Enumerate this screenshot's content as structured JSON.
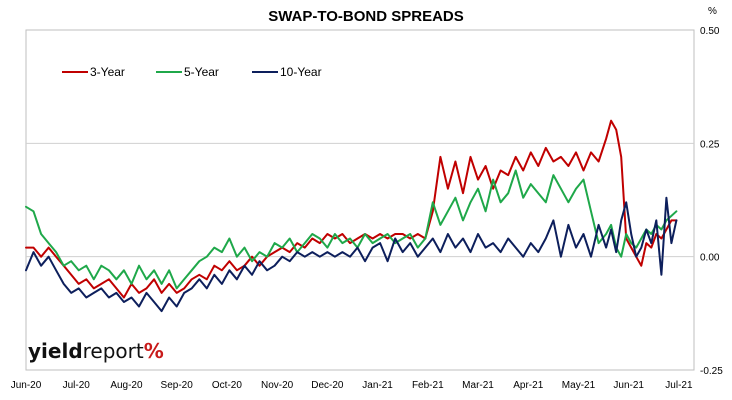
{
  "chart_data": {
    "type": "line",
    "title": "SWAP-TO-BOND SPREADS",
    "ylabel": "%",
    "ylim": [
      -0.25,
      0.5
    ],
    "yticks": [
      "0.50",
      "0.25",
      "0.00",
      "-0.25"
    ],
    "ytick_values": [
      0.5,
      0.25,
      0.0,
      -0.25
    ],
    "xlim": [
      0,
      13.3
    ],
    "xticks": [
      "Jun-20",
      "Jul-20",
      "Aug-20",
      "Sep-20",
      "Oct-20",
      "Nov-20",
      "Dec-20",
      "Jan-21",
      "Feb-21",
      "Mar-21",
      "Apr-21",
      "May-21",
      "Jun-21",
      "Jul-21"
    ],
    "grid": "horizontal",
    "legend_position": "top-left",
    "series": [
      {
        "name": "3-Year",
        "color": "#c00000",
        "x": [
          0.0,
          0.15,
          0.3,
          0.45,
          0.6,
          0.75,
          0.9,
          1.05,
          1.2,
          1.35,
          1.5,
          1.65,
          1.8,
          1.95,
          2.1,
          2.25,
          2.4,
          2.55,
          2.7,
          2.85,
          3.0,
          3.15,
          3.3,
          3.45,
          3.6,
          3.75,
          3.9,
          4.05,
          4.2,
          4.35,
          4.5,
          4.65,
          4.8,
          4.95,
          5.1,
          5.25,
          5.4,
          5.55,
          5.7,
          5.85,
          6.0,
          6.15,
          6.3,
          6.45,
          6.6,
          6.75,
          6.9,
          7.05,
          7.2,
          7.35,
          7.5,
          7.65,
          7.8,
          7.95,
          8.1,
          8.25,
          8.4,
          8.55,
          8.7,
          8.85,
          9.0,
          9.15,
          9.3,
          9.45,
          9.6,
          9.75,
          9.9,
          10.05,
          10.2,
          10.35,
          10.5,
          10.65,
          10.8,
          10.95,
          11.1,
          11.25,
          11.4,
          11.55,
          11.65,
          11.75,
          11.85,
          11.95,
          12.05,
          12.15,
          12.25,
          12.35,
          12.45,
          12.55,
          12.65,
          12.75,
          12.85,
          12.95
        ],
        "y": [
          0.02,
          0.02,
          0.0,
          0.02,
          0.0,
          -0.02,
          -0.04,
          -0.06,
          -0.05,
          -0.07,
          -0.06,
          -0.05,
          -0.07,
          -0.09,
          -0.06,
          -0.08,
          -0.07,
          -0.05,
          -0.08,
          -0.06,
          -0.08,
          -0.07,
          -0.05,
          -0.04,
          -0.05,
          -0.02,
          -0.03,
          -0.01,
          -0.03,
          -0.02,
          0.0,
          -0.02,
          0.0,
          0.01,
          0.02,
          0.01,
          0.03,
          0.02,
          0.04,
          0.03,
          0.05,
          0.04,
          0.05,
          0.03,
          0.04,
          0.05,
          0.04,
          0.05,
          0.04,
          0.05,
          0.05,
          0.04,
          0.05,
          0.04,
          0.1,
          0.22,
          0.15,
          0.21,
          0.14,
          0.22,
          0.17,
          0.2,
          0.15,
          0.19,
          0.18,
          0.22,
          0.19,
          0.23,
          0.2,
          0.24,
          0.21,
          0.22,
          0.2,
          0.23,
          0.19,
          0.23,
          0.21,
          0.26,
          0.3,
          0.28,
          0.22,
          0.04,
          0.02,
          0.0,
          -0.02,
          0.03,
          0.02,
          0.05,
          0.04,
          0.06,
          0.08,
          0.08
        ]
      },
      {
        "name": "5-Year",
        "color": "#1fa84a",
        "x": [
          0.0,
          0.15,
          0.3,
          0.45,
          0.6,
          0.75,
          0.9,
          1.05,
          1.2,
          1.35,
          1.5,
          1.65,
          1.8,
          1.95,
          2.1,
          2.25,
          2.4,
          2.55,
          2.7,
          2.85,
          3.0,
          3.15,
          3.3,
          3.45,
          3.6,
          3.75,
          3.9,
          4.05,
          4.2,
          4.35,
          4.5,
          4.65,
          4.8,
          4.95,
          5.1,
          5.25,
          5.4,
          5.55,
          5.7,
          5.85,
          6.0,
          6.15,
          6.3,
          6.45,
          6.6,
          6.75,
          6.9,
          7.05,
          7.2,
          7.35,
          7.5,
          7.65,
          7.8,
          7.95,
          8.1,
          8.25,
          8.4,
          8.55,
          8.7,
          8.85,
          9.0,
          9.15,
          9.3,
          9.45,
          9.6,
          9.75,
          9.9,
          10.05,
          10.2,
          10.35,
          10.5,
          10.65,
          10.8,
          10.95,
          11.1,
          11.25,
          11.4,
          11.55,
          11.65,
          11.75,
          11.85,
          11.95,
          12.05,
          12.15,
          12.25,
          12.35,
          12.45,
          12.55,
          12.65,
          12.75,
          12.85,
          12.95
        ],
        "y": [
          0.11,
          0.1,
          0.05,
          0.03,
          0.01,
          -0.02,
          -0.01,
          -0.03,
          -0.02,
          -0.05,
          -0.02,
          -0.03,
          -0.05,
          -0.03,
          -0.06,
          -0.02,
          -0.05,
          -0.03,
          -0.06,
          -0.03,
          -0.07,
          -0.05,
          -0.03,
          -0.01,
          0.0,
          0.02,
          0.01,
          0.04,
          0.0,
          0.02,
          -0.01,
          0.01,
          0.0,
          0.03,
          0.02,
          0.04,
          0.01,
          0.03,
          0.05,
          0.04,
          0.02,
          0.05,
          0.03,
          0.04,
          0.02,
          0.05,
          0.03,
          0.04,
          0.05,
          0.03,
          0.04,
          0.05,
          0.02,
          0.04,
          0.12,
          0.07,
          0.1,
          0.13,
          0.08,
          0.12,
          0.15,
          0.1,
          0.17,
          0.12,
          0.14,
          0.19,
          0.13,
          0.16,
          0.14,
          0.12,
          0.18,
          0.15,
          0.12,
          0.15,
          0.17,
          0.1,
          0.03,
          0.05,
          0.07,
          0.02,
          0.0,
          0.05,
          0.03,
          0.02,
          0.04,
          0.06,
          0.05,
          0.07,
          0.06,
          0.08,
          0.09,
          0.1
        ]
      },
      {
        "name": "10-Year",
        "color": "#0d1f5c",
        "x": [
          0.0,
          0.15,
          0.3,
          0.45,
          0.6,
          0.75,
          0.9,
          1.05,
          1.2,
          1.35,
          1.5,
          1.65,
          1.8,
          1.95,
          2.1,
          2.25,
          2.4,
          2.55,
          2.7,
          2.85,
          3.0,
          3.15,
          3.3,
          3.45,
          3.6,
          3.75,
          3.9,
          4.05,
          4.2,
          4.35,
          4.5,
          4.65,
          4.8,
          4.95,
          5.1,
          5.25,
          5.4,
          5.55,
          5.7,
          5.85,
          6.0,
          6.15,
          6.3,
          6.45,
          6.6,
          6.75,
          6.9,
          7.05,
          7.2,
          7.35,
          7.5,
          7.65,
          7.8,
          7.95,
          8.1,
          8.25,
          8.4,
          8.55,
          8.7,
          8.85,
          9.0,
          9.15,
          9.3,
          9.45,
          9.6,
          9.75,
          9.9,
          10.05,
          10.2,
          10.35,
          10.5,
          10.65,
          10.8,
          10.95,
          11.1,
          11.25,
          11.4,
          11.55,
          11.65,
          11.75,
          11.85,
          11.95,
          12.05,
          12.15,
          12.25,
          12.35,
          12.45,
          12.55,
          12.65,
          12.75,
          12.85,
          12.95
        ],
        "y": [
          -0.03,
          0.01,
          -0.02,
          0.0,
          -0.03,
          -0.06,
          -0.08,
          -0.07,
          -0.09,
          -0.08,
          -0.07,
          -0.09,
          -0.08,
          -0.1,
          -0.09,
          -0.11,
          -0.08,
          -0.1,
          -0.12,
          -0.09,
          -0.11,
          -0.08,
          -0.07,
          -0.05,
          -0.07,
          -0.04,
          -0.06,
          -0.03,
          -0.05,
          -0.02,
          -0.04,
          -0.01,
          -0.03,
          -0.02,
          0.0,
          -0.01,
          0.01,
          0.0,
          0.01,
          0.0,
          0.01,
          0.0,
          0.01,
          0.0,
          0.02,
          -0.01,
          0.02,
          0.03,
          -0.01,
          0.04,
          0.01,
          0.03,
          0.0,
          0.02,
          0.04,
          0.01,
          0.05,
          0.02,
          0.04,
          0.01,
          0.05,
          0.02,
          0.03,
          0.01,
          0.04,
          0.02,
          0.0,
          0.03,
          0.01,
          0.04,
          0.08,
          0.0,
          0.07,
          0.02,
          0.05,
          0.0,
          0.07,
          0.02,
          0.06,
          0.01,
          0.08,
          0.12,
          0.05,
          0.0,
          0.02,
          0.06,
          0.03,
          0.08,
          -0.04,
          0.13,
          0.03,
          0.08
        ]
      }
    ]
  },
  "logo": {
    "part1": "yield",
    "part2": "report",
    "part3": "%"
  }
}
